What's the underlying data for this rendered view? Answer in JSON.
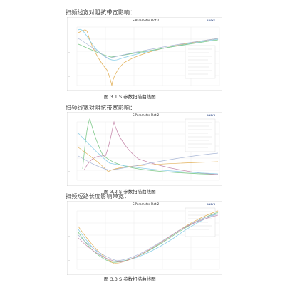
{
  "sections": [
    {
      "heading": "扫频线宽对阻抗带宽影响：",
      "plot_title": "S Parameter Plot 2",
      "caption": "图 3.1 S 参数扫描曲线图"
    },
    {
      "heading": "扫频线宽对阻抗带宽影响：",
      "plot_title": "S Parameter Plot 2",
      "caption": "图 3.2 S 参数扫描曲线图"
    },
    {
      "heading": "扫频短路长度影响带宽：",
      "plot_title": "S Parameter Plot 2",
      "caption": "图 3.3 S 参数扫描曲线图"
    }
  ],
  "colors": {
    "grid": "#e3e3e3",
    "frame": "#b5b5b5",
    "series_a": "#8fd0e8",
    "series_b": "#e2b15a",
    "series_c": "#7fc98a",
    "series_d": "#c98fb0",
    "series_e": "#a9b7d6"
  }
}
